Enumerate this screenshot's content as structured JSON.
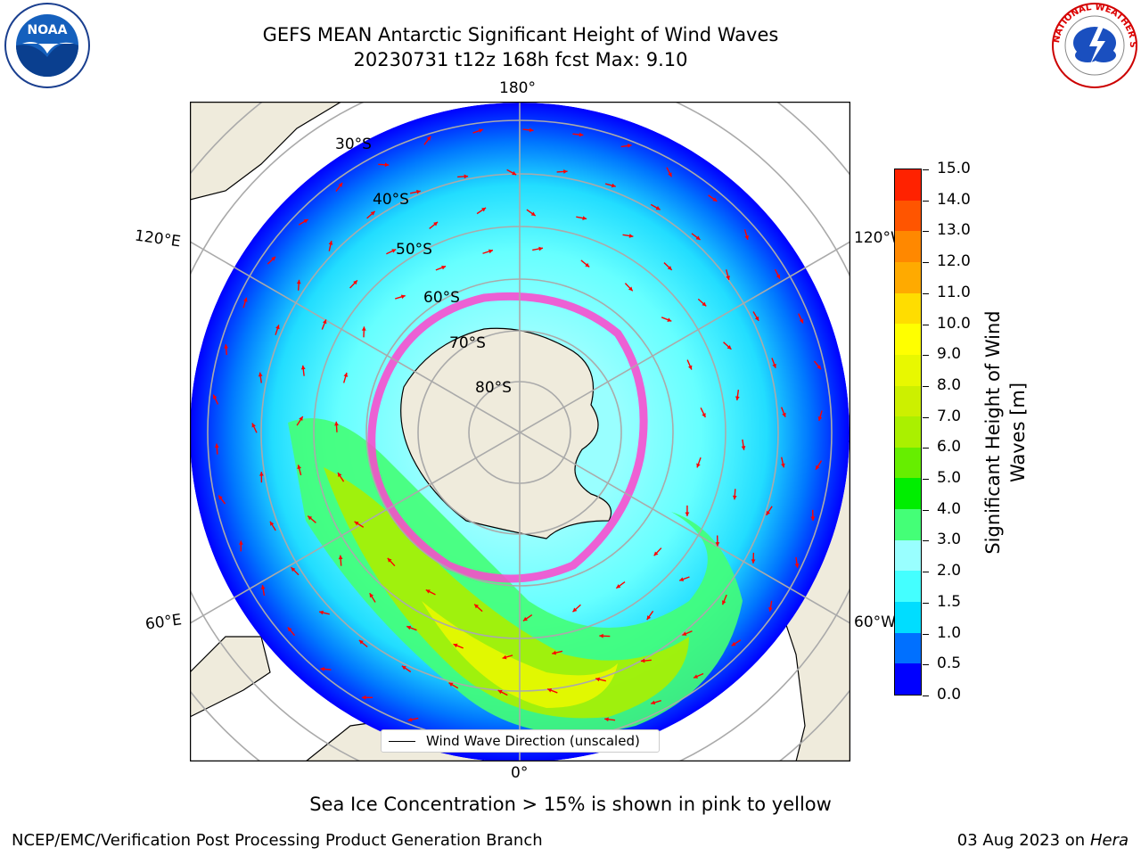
{
  "header": {
    "title_line1": "GEFS MEAN Antarctic Significant Height of Wind Waves",
    "title_line2": "20230731 t12z 168h fcst   Max: 9.10"
  },
  "logos": {
    "left": "NOAA",
    "right_text": "NATIONAL WEATHER SERVICE"
  },
  "map": {
    "longitude_labels": {
      "top": "180°",
      "bottom": "0°",
      "upper_left": "120°E",
      "lower_left": "60°E",
      "upper_right": "120°W",
      "lower_right": "60°W"
    },
    "latitude_labels": [
      "30°S",
      "40°S",
      "50°S",
      "60°S",
      "70°S",
      "80°S"
    ],
    "legend_label": "Wind Wave Direction (unscaled)"
  },
  "colorbar": {
    "label_line1": "Significant Height of Wind",
    "label_line2": "Waves [m]",
    "ticks": [
      "15.0",
      "14.0",
      "13.0",
      "12.0",
      "11.0",
      "10.0",
      "9.0",
      "8.0",
      "7.0",
      "6.0",
      "5.0",
      "4.0",
      "3.0",
      "2.0",
      "1.5",
      "1.0",
      "0.5",
      "0.0"
    ],
    "colors": [
      "#0000ff",
      "#0070ff",
      "#00ddff",
      "#44ffff",
      "#99ffff",
      "#44ff77",
      "#00ee00",
      "#66ee00",
      "#aaf000",
      "#ccf000",
      "#e8f800",
      "#ffff00",
      "#ffdd00",
      "#ffaa00",
      "#ff8800",
      "#ff5500",
      "#ff2200"
    ]
  },
  "footer": {
    "note": "Sea Ice Concentration > 15% is shown in pink to yellow",
    "credit": "NCEP/EMC/Verification Post Processing Product Generation Branch",
    "date": "03 Aug 2023 on",
    "host": "Hera"
  }
}
